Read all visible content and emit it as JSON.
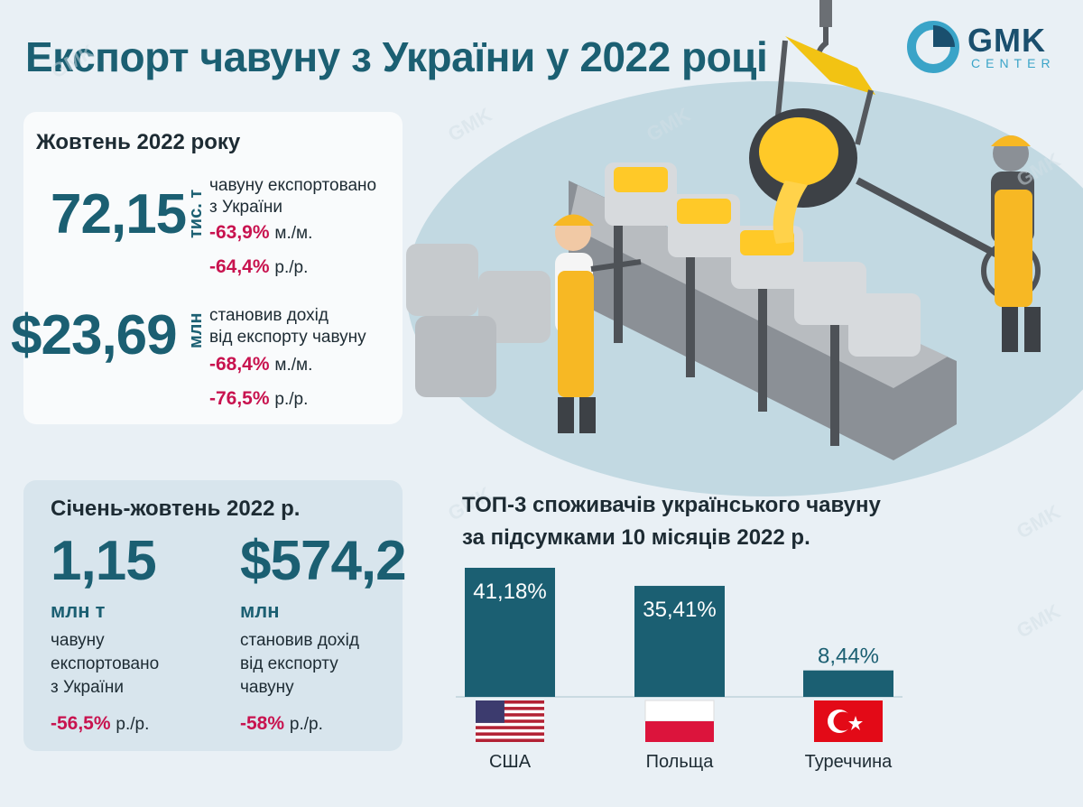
{
  "title": "Експорт чавуну з України у 2022 році",
  "logo": {
    "name": "GMK",
    "sub": "CENTER"
  },
  "watermark_text": "GMK",
  "october": {
    "heading": "Жовтень 2022 року",
    "volume": {
      "value": "72,15",
      "unit": "тис. т",
      "desc_line1": "чавуну експортовано",
      "desc_line2": "з України",
      "mom": "-63,9%",
      "mom_suffix": "м./м.",
      "yoy": "-64,4%",
      "yoy_suffix": "р./р."
    },
    "revenue": {
      "value": "$23,69",
      "unit": "млн",
      "desc_line1": "становив дохід",
      "desc_line2": "від експорту чавуну",
      "mom": "-68,4%",
      "mom_suffix": "м./м.",
      "yoy": "-76,5%",
      "yoy_suffix": "р./р."
    }
  },
  "jan_oct": {
    "heading": "Січень-жовтень 2022 р.",
    "volume": {
      "value": "1,15",
      "unit": "млн т",
      "desc": [
        "чавуну",
        "експортовано",
        "з України"
      ],
      "yoy": "-56,5%",
      "yoy_suffix": "р./р."
    },
    "revenue": {
      "value": "$574,2",
      "unit": "млн",
      "desc": [
        "становив дохід",
        "від експорту",
        "чавуну"
      ],
      "yoy": "-58%",
      "yoy_suffix": "р./р."
    }
  },
  "colors": {
    "bar": "#1b5f72",
    "accent_red": "#c8134f",
    "title": "#1b5f72",
    "background": "#e9f0f5",
    "worker_yellow": "#f7b824",
    "molten": "#ffc928"
  },
  "chart_data": {
    "type": "bar",
    "title_line1": "ТОП-3 споживачів українського чавуну",
    "title_line2": "за підсумками 10 місяців 2022 р.",
    "categories": [
      "США",
      "Польща",
      "Туреччина"
    ],
    "values": [
      41.18,
      35.41,
      8.44
    ],
    "value_labels": [
      "41,18%",
      "35,41%",
      "8,44%"
    ],
    "flags": [
      "us-flag-icon",
      "poland-flag-icon",
      "turkey-flag-icon"
    ],
    "unit": "%",
    "xlabel": "",
    "ylabel": "",
    "ylim": [
      0,
      41.18
    ],
    "grid": false,
    "legend": "none"
  }
}
